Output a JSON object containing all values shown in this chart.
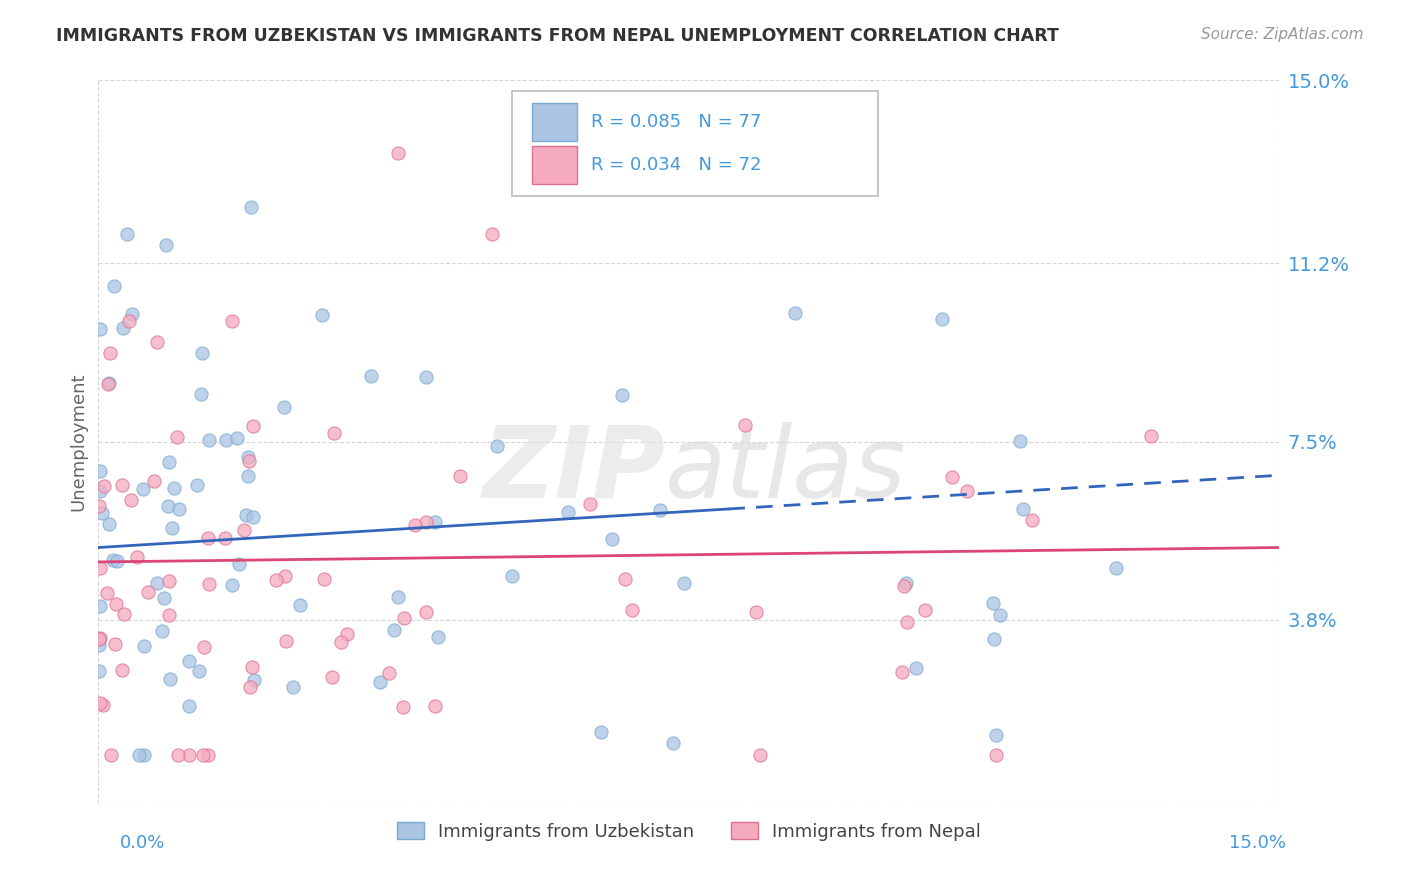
{
  "title": "IMMIGRANTS FROM UZBEKISTAN VS IMMIGRANTS FROM NEPAL UNEMPLOYMENT CORRELATION CHART",
  "source": "Source: ZipAtlas.com",
  "ylabel": "Unemployment",
  "xmin": 0.0,
  "xmax": 0.15,
  "ymin": 0.0,
  "ymax": 0.15,
  "ytick_positions": [
    0.038,
    0.075,
    0.112,
    0.15
  ],
  "ytick_labels": [
    "3.8%",
    "7.5%",
    "11.2%",
    "15.0%"
  ],
  "legend_r1": "R = 0.085",
  "legend_n1": "N = 77",
  "legend_r2": "R = 0.034",
  "legend_n2": "N = 72",
  "series1_color": "#aac4e4",
  "series2_color": "#f5aabe",
  "series1_edge": "#7aaad0",
  "series2_edge": "#e07090",
  "trend1_color": "#3366bb",
  "trend2_color": "#dd4477",
  "background_color": "#ffffff",
  "grid_color": "#cccccc",
  "title_color": "#333333",
  "axis_label_color": "#4499dd",
  "uzbekistan_label": "Immigrants from Uzbekistan",
  "nepal_label": "Immigrants from Nepal"
}
